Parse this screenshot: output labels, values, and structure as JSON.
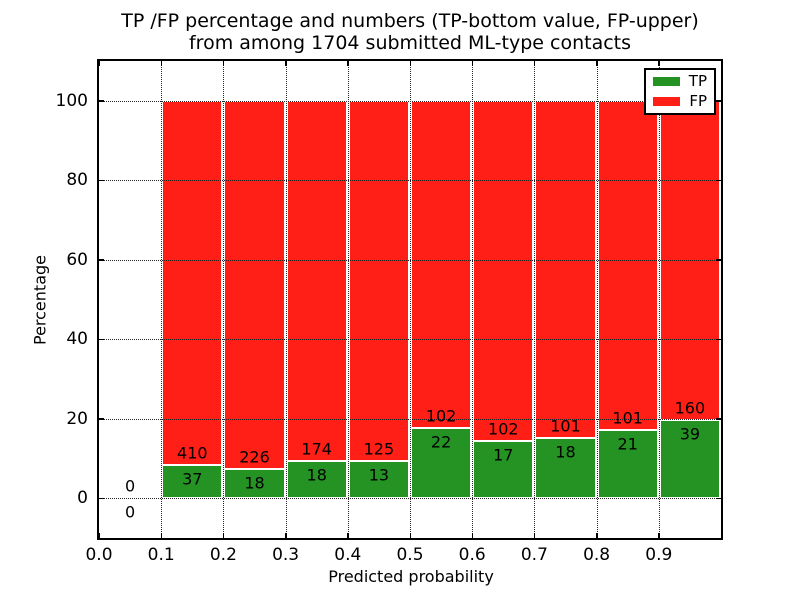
{
  "chart_data": {
    "type": "bar",
    "stacked": true,
    "title_lines": [
      "TP /FP percentage and numbers (TP-bottom value, FP-upper)",
      "from among 1704 submitted ML-type contacts"
    ],
    "xlabel": "Predicted probability",
    "ylabel": "Percentage",
    "xlim": [
      0.0,
      1.0
    ],
    "ylim": [
      -10,
      110
    ],
    "yticks": [
      0,
      20,
      40,
      60,
      80,
      100
    ],
    "xticks": [
      {
        "value": 0.0,
        "label": "0.0"
      },
      {
        "value": 0.1,
        "label": "0.1"
      },
      {
        "value": 0.2,
        "label": "0.2"
      },
      {
        "value": 0.3,
        "label": "0.3"
      },
      {
        "value": 0.4,
        "label": "0.4"
      },
      {
        "value": 0.5,
        "label": "0.5"
      },
      {
        "value": 0.6,
        "label": "0.6"
      },
      {
        "value": 0.7,
        "label": "0.7"
      },
      {
        "value": 0.8,
        "label": "0.8"
      },
      {
        "value": 0.9,
        "label": "0.9"
      }
    ],
    "grid": true,
    "grid_style": "dotted",
    "legend": {
      "position": "upper-right",
      "entries": [
        {
          "label": "TP",
          "color": "#249324"
        },
        {
          "label": "FP",
          "color": "#ff1f16"
        }
      ]
    },
    "bins": [
      {
        "range_start": 0.0,
        "range_end": 0.1,
        "tp_count": 0,
        "fp_count": 0,
        "tp_pct": 0.0,
        "fp_pct": 0.0,
        "has_bar": false
      },
      {
        "range_start": 0.1,
        "range_end": 0.2,
        "tp_count": 37,
        "fp_count": 410,
        "tp_pct": 8.28,
        "fp_pct": 91.72,
        "has_bar": true
      },
      {
        "range_start": 0.2,
        "range_end": 0.3,
        "tp_count": 18,
        "fp_count": 226,
        "tp_pct": 7.38,
        "fp_pct": 92.62,
        "has_bar": true
      },
      {
        "range_start": 0.3,
        "range_end": 0.4,
        "tp_count": 18,
        "fp_count": 174,
        "tp_pct": 9.38,
        "fp_pct": 90.62,
        "has_bar": true
      },
      {
        "range_start": 0.4,
        "range_end": 0.5,
        "tp_count": 13,
        "fp_count": 125,
        "tp_pct": 9.42,
        "fp_pct": 90.58,
        "has_bar": true
      },
      {
        "range_start": 0.5,
        "range_end": 0.6,
        "tp_count": 22,
        "fp_count": 102,
        "tp_pct": 17.74,
        "fp_pct": 82.26,
        "has_bar": true
      },
      {
        "range_start": 0.6,
        "range_end": 0.7,
        "tp_count": 17,
        "fp_count": 102,
        "tp_pct": 14.29,
        "fp_pct": 85.71,
        "has_bar": true
      },
      {
        "range_start": 0.7,
        "range_end": 0.8,
        "tp_count": 18,
        "fp_count": 101,
        "tp_pct": 15.13,
        "fp_pct": 84.87,
        "has_bar": true
      },
      {
        "range_start": 0.8,
        "range_end": 0.9,
        "tp_count": 21,
        "fp_count": 101,
        "tp_pct": 17.21,
        "fp_pct": 82.79,
        "has_bar": true
      },
      {
        "range_start": 0.9,
        "range_end": 1.0,
        "tp_count": 39,
        "fp_count": 160,
        "tp_pct": 19.6,
        "fp_pct": 80.4,
        "has_bar": true
      }
    ]
  },
  "colors": {
    "tp": "#249324",
    "fp": "#ff1f16",
    "axis": "#000000",
    "grid": "#222222",
    "background": "#ffffff",
    "text": "#000000"
  }
}
